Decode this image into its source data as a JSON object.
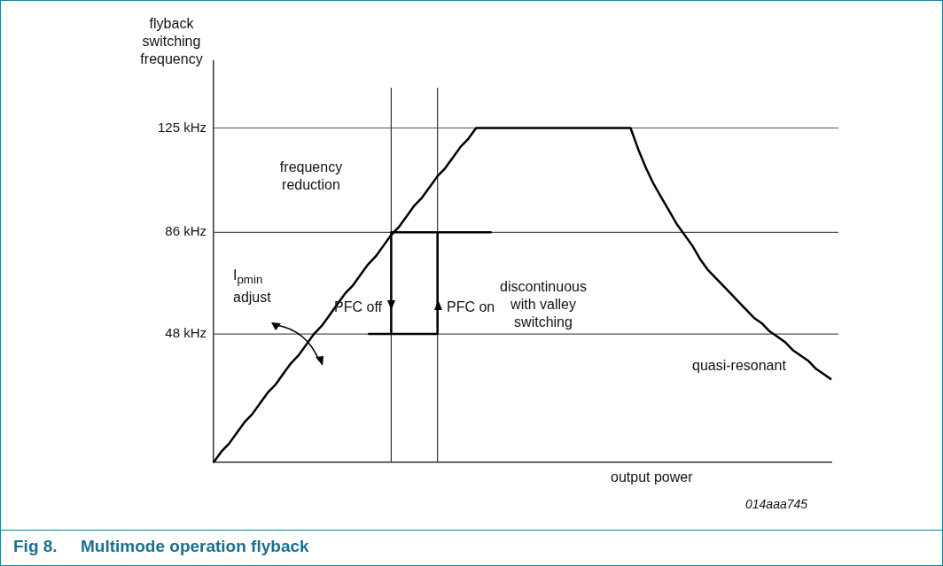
{
  "chart_data": {
    "type": "line",
    "title": "Fig 8.     Multimode operation flyback",
    "xlabel": "output power",
    "ylabel": "flyback switching frequency",
    "annotations": [
      "frequency reduction",
      "PFC off",
      "PFC on",
      "I$_{pmin}$ adjust",
      "discontinuous with valley switching",
      "quasi-resonant",
      "014aaa745"
    ],
    "categories": [
      null,
      null,
      null,
      null,
      null,
      null,
      null,
      null,
      null,
      null,
      null,
      null,
      null,
      null,
      null,
      null,
      null,
      null,
      null,
      null,
      null,
      null,
      null,
      null,
      null,
      null,
      null,
      null,
      null,
      null,
      null,
      null,
      null,
      null,
      null,
      null,
      null,
      null,
      null,
      null,
      null,
      null,
      null,
      null,
      null,
      null,
      null,
      null,
      null,
      null,
      null,
      null,
      null,
      null,
      null,
      null,
      null,
      null,
      null,
      null,
      null,
      null,
      null,
      null,
      null,
      null,
      null,
      null,
      null,
      null,
      null,
      null,
      null,
      null,
      null,
      null,
      null,
      null,
      null,
      null,
      null
    ],
    "ylim": [
      0,
      150
    ],
    "yticks": [
      {
        "value": 48,
        "label": "48 kHz"
      },
      {
        "value": 86,
        "label": "86 kHz"
      },
      {
        "value": 125,
        "label": "125 kHz"
      }
    ],
    "tick_labels": "y",
    "grid": false,
    "legend": false,
    "marker": "none",
    "line_style": "solid",
    "ref_lines": [
      {
        "axis": "y",
        "value": 125,
        "color": "#555555"
      },
      {
        "axis": "y",
        "value": 86,
        "color": "#555555"
      },
      {
        "axis": "y",
        "value": 48,
        "color": "#555555"
      }
    ],
    "series": [
      {
        "color": "#000000",
        "values": [
          0,
          4,
          7,
          11,
          15,
          18,
          22,
          26,
          29,
          33,
          37,
          40,
          44,
          48,
          51,
          55,
          59,
          63,
          66,
          70,
          74,
          77,
          81,
          85,
          88,
          92,
          96,
          99,
          103,
          107,
          110,
          114,
          118,
          121,
          125,
          125,
          125,
          125,
          125,
          125,
          125,
          125,
          125,
          125,
          125,
          125,
          125,
          125,
          125,
          125,
          125,
          125,
          125,
          125,
          125,
          117,
          110,
          104,
          99,
          94,
          89,
          85,
          81,
          76,
          72,
          69,
          66,
          63,
          60,
          57,
          54,
          52,
          49,
          47,
          45,
          42,
          40,
          38,
          35,
          33,
          31
        ]
      },
      {
        "type": "step",
        "color": "#000000",
        "values": [
          null,
          null,
          null,
          null,
          null,
          null,
          null,
          null,
          null,
          null,
          null,
          null,
          null,
          null,
          null,
          null,
          null,
          null,
          null,
          null,
          48,
          48,
          48,
          86,
          86,
          86,
          86,
          86,
          86,
          86,
          86,
          86,
          86,
          86,
          86,
          86,
          86,
          null,
          null,
          null,
          null,
          null,
          null,
          null,
          null,
          null,
          null,
          null,
          null,
          null,
          null,
          null,
          null,
          null,
          null,
          null,
          null,
          null,
          null,
          null,
          null,
          null,
          null,
          null,
          null,
          null,
          null,
          null,
          null,
          null,
          null,
          null,
          null,
          null,
          null,
          null,
          null,
          null,
          null,
          null,
          null
        ]
      },
      {
        "type": "step",
        "color": "#000000",
        "values": [
          null,
          null,
          null,
          null,
          null,
          null,
          null,
          null,
          null,
          null,
          null,
          null,
          null,
          null,
          null,
          null,
          null,
          null,
          null,
          null,
          null,
          null,
          null,
          48,
          48,
          48,
          48,
          48,
          48,
          86,
          null,
          null,
          null,
          null,
          null,
          null,
          null,
          null,
          null,
          null,
          null,
          null,
          null,
          null,
          null,
          null,
          null,
          null,
          null,
          null,
          null,
          null,
          null,
          null,
          null,
          null,
          null,
          null,
          null,
          null,
          null,
          null,
          null,
          null,
          null,
          null,
          null,
          null,
          null,
          null,
          null,
          null,
          null,
          null,
          null,
          null,
          null,
          null,
          null,
          null,
          null
        ]
      }
    ]
  }
}
